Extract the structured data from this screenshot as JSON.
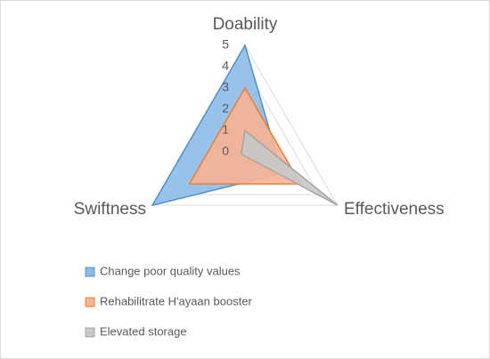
{
  "chart_data": {
    "type": "radar",
    "categories": [
      "Doability",
      "Effectiveness",
      "Swiftness"
    ],
    "series": [
      {
        "name": "Change poor quality values",
        "color": "#4a90d0",
        "fill": "#8dbbe8",
        "values": [
          5,
          2,
          5
        ]
      },
      {
        "name": "Rehabilitrate H'ayaan booster",
        "color": "#ed7d31",
        "fill": "#f7b493",
        "values": [
          3,
          3,
          3
        ]
      },
      {
        "name": "Elevated storage",
        "color": "#a5a5a5",
        "fill": "#c8c8c8",
        "values": [
          1,
          5,
          0.2
        ]
      }
    ],
    "rlim": [
      0,
      5
    ],
    "rticks": [
      0,
      1,
      2,
      3,
      4,
      5
    ],
    "grid": true
  }
}
